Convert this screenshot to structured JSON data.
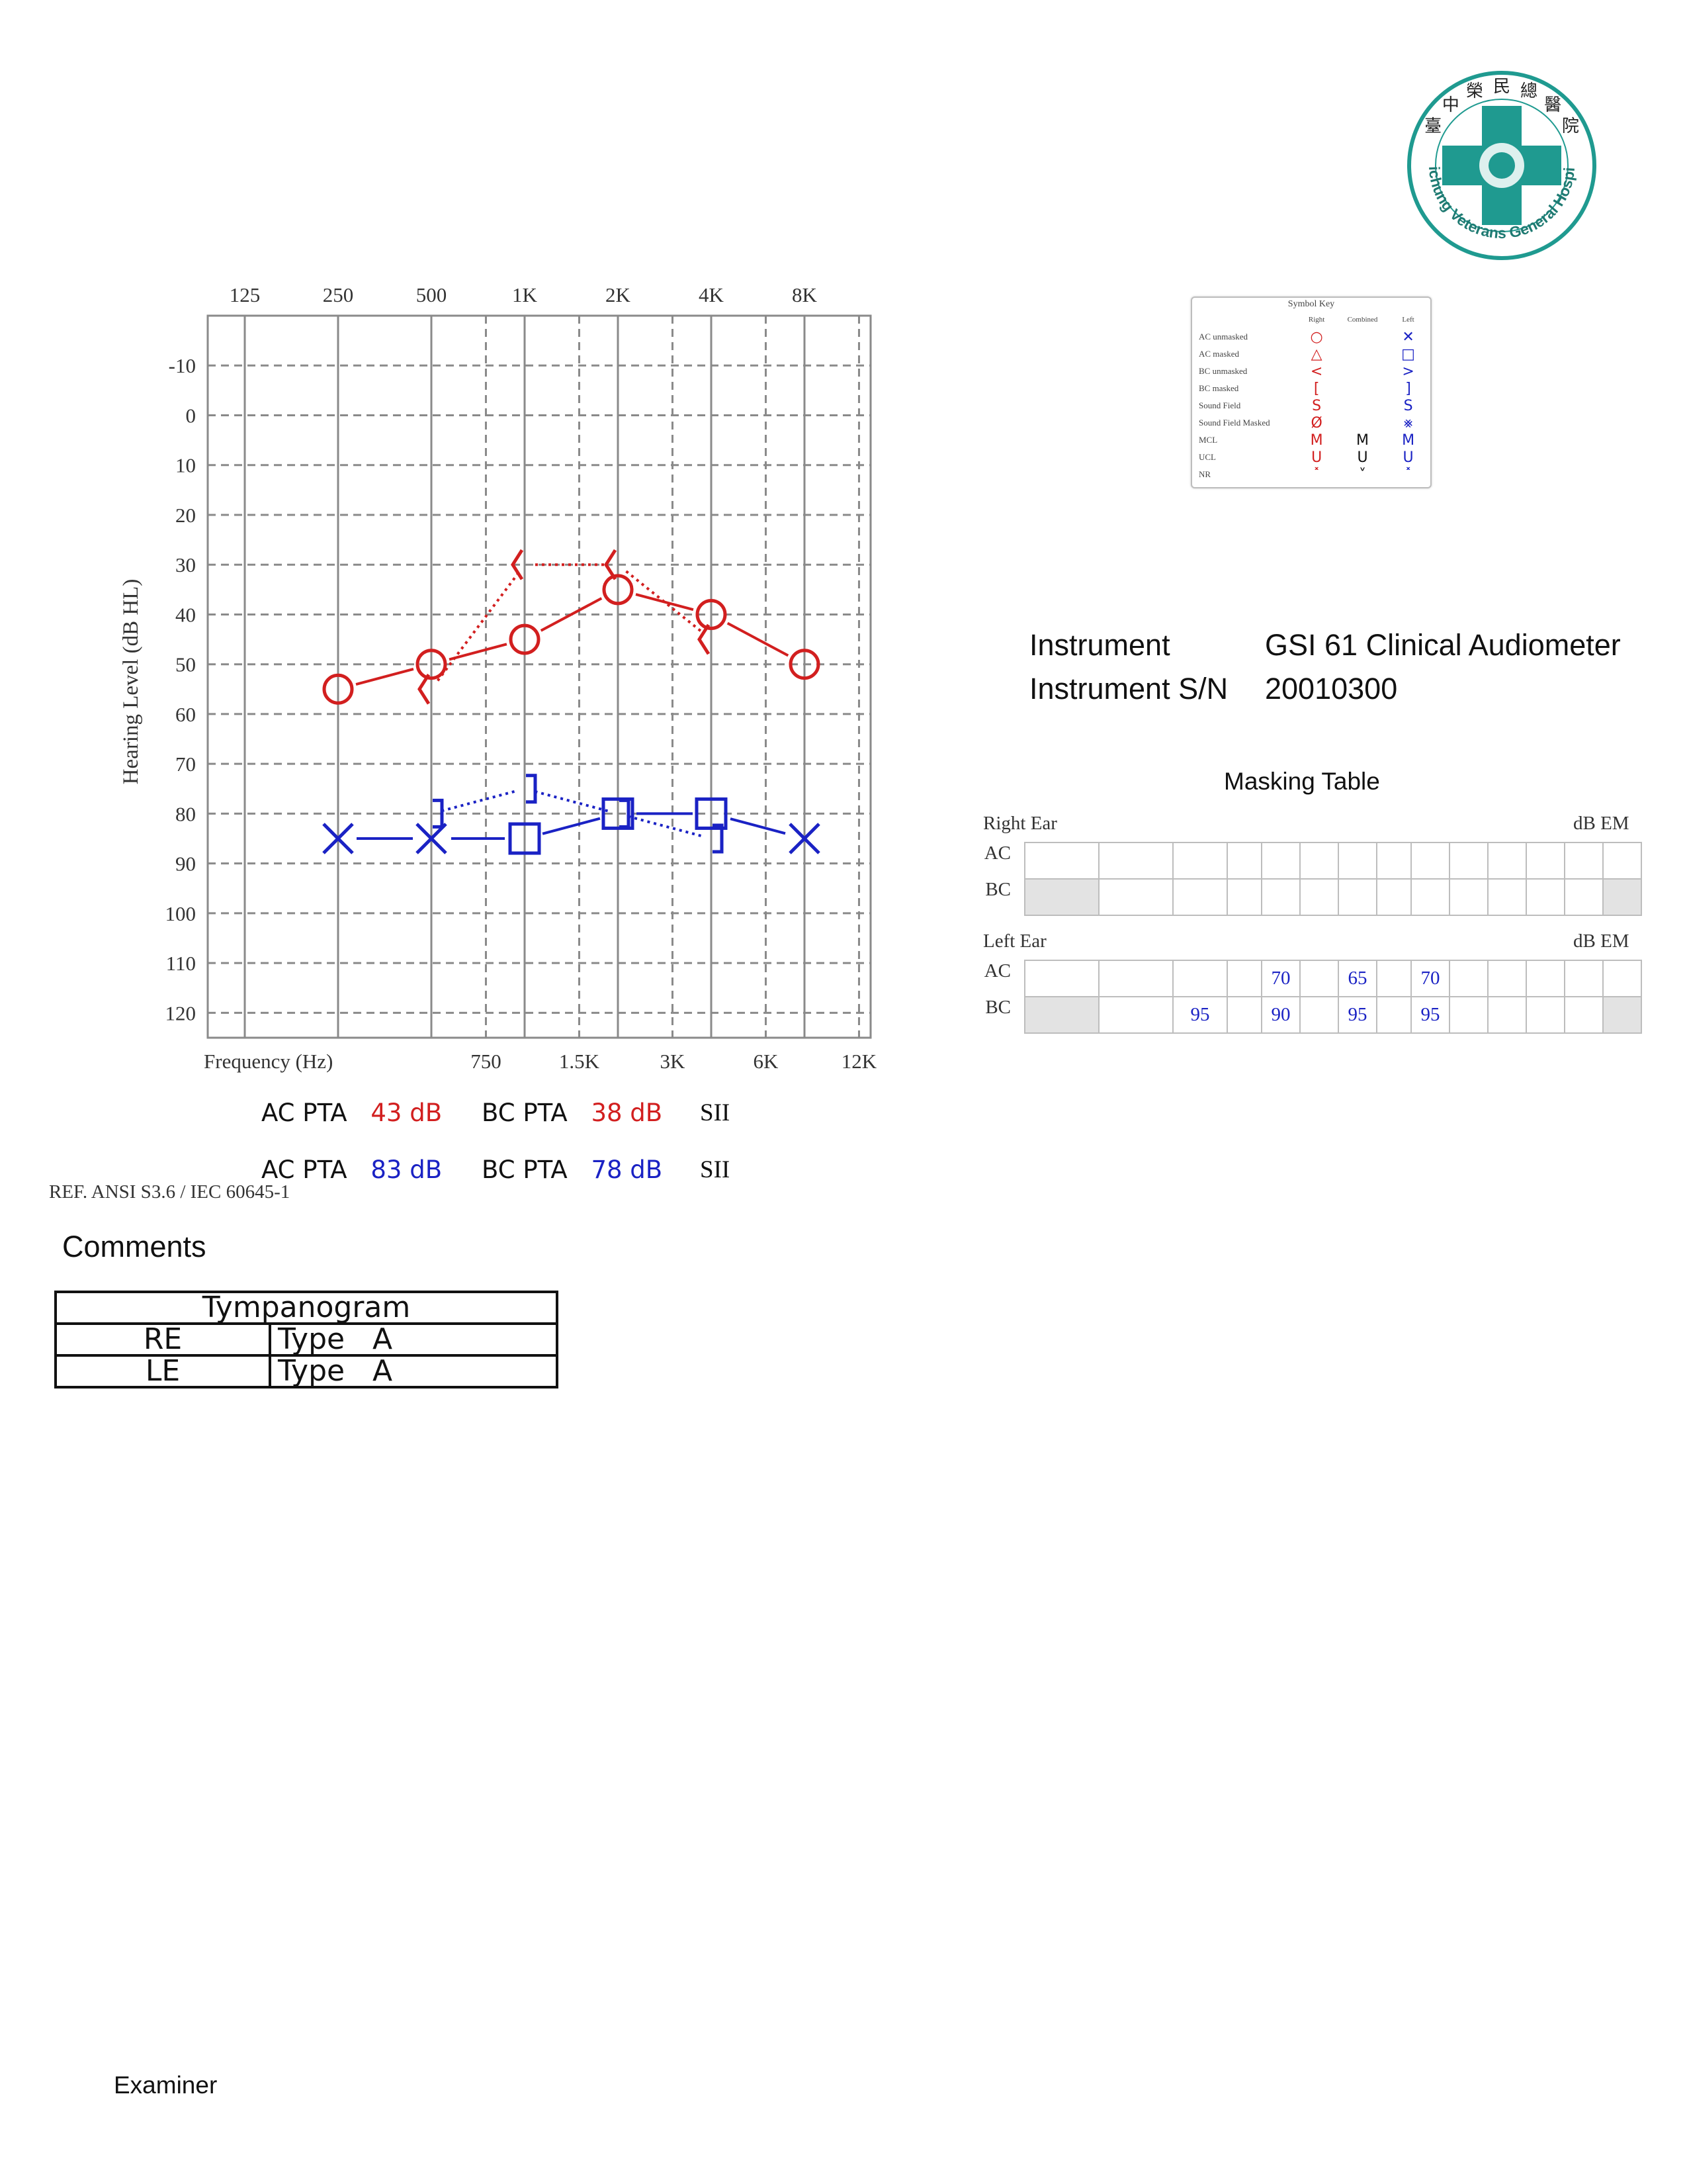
{
  "colors": {
    "right": "#d21f1f",
    "left": "#1a22c4",
    "grid": "#8a8a8a",
    "logo_teal": "#1f9a90"
  },
  "logo": {
    "name_cn": [
      "臺",
      "中",
      "榮",
      "民",
      "總",
      "醫",
      "院"
    ],
    "name_en": "Taichung Veterans General Hospital"
  },
  "chart_data": {
    "type": "audiogram",
    "x_scale": "log-frequency",
    "freq_top_labels": [
      "125",
      "250",
      "500",
      "1K",
      "2K",
      "4K",
      "8K"
    ],
    "freq_bottom_labels": [
      "750",
      "1.5K",
      "3K",
      "6K",
      "12K"
    ],
    "xlabel": "Frequency (Hz)",
    "ylabel": "Hearing Level (dB HL)",
    "y_ticks": [
      -10,
      0,
      10,
      20,
      30,
      40,
      50,
      60,
      70,
      80,
      90,
      100,
      110,
      120
    ],
    "ylim": [
      -20,
      125
    ],
    "series": [
      {
        "name": "AC unmasked",
        "ear": "right",
        "symbol": "circle",
        "line": "solid",
        "x": [
          250,
          500,
          1000,
          2000,
          4000,
          8000
        ],
        "y": [
          55,
          50,
          45,
          35,
          40,
          50
        ]
      },
      {
        "name": "BC unmasked",
        "ear": "right",
        "symbol": "angle-left",
        "line": "dotted",
        "x": [
          500,
          1000,
          2000,
          4000
        ],
        "y": [
          55,
          30,
          30,
          45
        ]
      },
      {
        "name": "AC unmasked",
        "ear": "left",
        "symbol": "x",
        "line": "solid",
        "x": [
          250,
          500
        ],
        "y": [
          85,
          85
        ]
      },
      {
        "name": "AC masked",
        "ear": "left",
        "symbol": "square",
        "line": "solid",
        "x": [
          1000,
          2000,
          4000
        ],
        "y": [
          85,
          80,
          80
        ]
      },
      {
        "name": "AC unmasked",
        "ear": "left",
        "symbol": "x",
        "line": "solid",
        "x": [
          8000
        ],
        "y": [
          85
        ]
      },
      {
        "name": "BC masked",
        "ear": "left",
        "symbol": "bracket-right",
        "line": "dotted",
        "x": [
          500,
          1000,
          2000,
          4000
        ],
        "y": [
          80,
          75,
          80,
          85
        ]
      }
    ]
  },
  "pta": {
    "right": {
      "ac_label": "AC PTA",
      "ac_value": "43 dB",
      "bc_label": "BC PTA",
      "bc_value": "38 dB",
      "sii_label": "SII"
    },
    "left": {
      "ac_label": "AC PTA",
      "ac_value": "83 dB",
      "bc_label": "BC PTA",
      "bc_value": "78 dB",
      "sii_label": "SII"
    }
  },
  "reference": "REF. ANSI S3.6 / IEC 60645-1",
  "symbol_key": {
    "title": "Symbol Key",
    "columns": [
      "Right",
      "Combined",
      "Left"
    ],
    "rows": [
      {
        "name": "AC unmasked",
        "right": "○",
        "combined": "",
        "left": "✕"
      },
      {
        "name": "AC masked",
        "right": "△",
        "combined": "",
        "left": "□"
      },
      {
        "name": "BC unmasked",
        "right": "<",
        "combined": "",
        "left": ">"
      },
      {
        "name": "BC masked",
        "right": "[",
        "combined": "",
        "left": "]"
      },
      {
        "name": "Sound Field",
        "right": "S",
        "combined": "",
        "left": "S"
      },
      {
        "name": "Sound Field Masked",
        "right": "Ø",
        "combined": "",
        "left": "⨳"
      },
      {
        "name": "MCL",
        "right": "M",
        "combined": "M",
        "left": "M"
      },
      {
        "name": "UCL",
        "right": "U",
        "combined": "U",
        "left": "U"
      },
      {
        "name": "NR",
        "right": "˟",
        "combined": "˅",
        "left": "˟"
      }
    ]
  },
  "instrument": {
    "label": "Instrument",
    "value": "GSI 61 Clinical Audiometer",
    "sn_label": "Instrument S/N",
    "sn_value": "20010300"
  },
  "masking": {
    "title": "Masking Table",
    "right_ear_label": "Right Ear",
    "left_ear_label": "Left Ear",
    "unit": "dB EM",
    "row_labels": [
      "AC",
      "BC"
    ],
    "right": {
      "ac": [
        "",
        "",
        "",
        "",
        "",
        "",
        "",
        "",
        "",
        "",
        "",
        "",
        "",
        ""
      ],
      "bc": [
        "",
        "",
        "",
        "",
        "",
        "",
        "",
        "",
        "",
        "",
        "",
        "",
        "",
        ""
      ]
    },
    "left": {
      "ac": [
        "",
        "",
        "",
        "",
        "70",
        "",
        "65",
        "",
        "70",
        "",
        "",
        "",
        "",
        ""
      ],
      "bc": [
        "",
        "",
        "95",
        "",
        "90",
        "",
        "95",
        "",
        "95",
        "",
        "",
        "",
        "",
        ""
      ]
    }
  },
  "comments_label": "Comments",
  "tympanogram": {
    "title": "Tympanogram",
    "rows": [
      {
        "ear": "RE",
        "type": "Type   A"
      },
      {
        "ear": "LE",
        "type": "Type   A"
      }
    ]
  },
  "examiner_label": "Examiner"
}
